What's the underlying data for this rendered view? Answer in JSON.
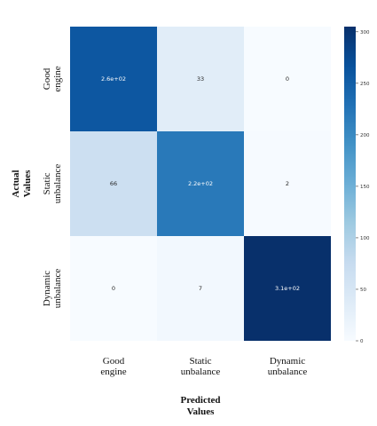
{
  "chart_data": {
    "type": "heatmap",
    "title": "",
    "xlabel": [
      "Predicted",
      "Values"
    ],
    "ylabel": [
      "Actual",
      "Values"
    ],
    "x_categories": [
      [
        "Good",
        "engine"
      ],
      [
        "Static",
        "unbalance"
      ],
      [
        "Dynamic",
        "unbalance"
      ]
    ],
    "y_categories": [
      [
        "Good",
        "engine"
      ],
      [
        "Static",
        "unbalance"
      ],
      [
        "Dynamic",
        "unbalance"
      ]
    ],
    "values": [
      [
        260,
        33,
        0
      ],
      [
        66,
        220,
        2
      ],
      [
        0,
        7,
        310
      ]
    ],
    "labels": [
      [
        "2.6e+02",
        "33",
        "0"
      ],
      [
        "66",
        "2.2e+02",
        "2"
      ],
      [
        "0",
        "7",
        "3.1e+02"
      ]
    ],
    "colormap": "Blues",
    "colorbar": {
      "min": 0,
      "max": 305,
      "ticks": [
        0,
        50,
        100,
        150,
        200,
        250,
        300
      ],
      "tick_labels": [
        "0",
        "50",
        "100",
        "150",
        "200",
        "250",
        "300"
      ]
    },
    "grid": false
  }
}
